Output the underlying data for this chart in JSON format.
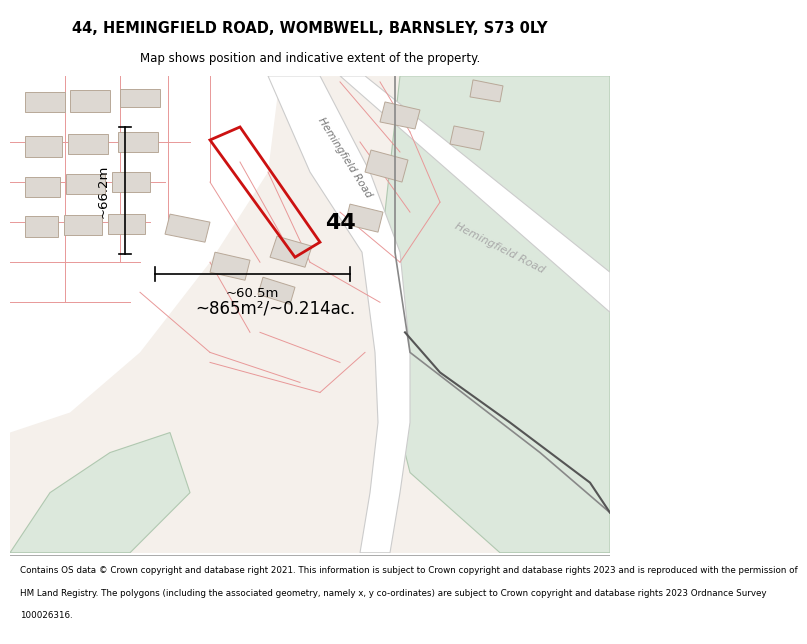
{
  "title_line1": "44, HEMINGFIELD ROAD, WOMBWELL, BARNSLEY, S73 0LY",
  "title_line2": "Map shows position and indicative extent of the property.",
  "footer_lines": [
    "Contains OS data © Crown copyright and database right 2021. This information is subject to Crown copyright and database rights 2023 and is reproduced with the permission of",
    "HM Land Registry. The polygons (including the associated geometry, namely x, y co-ordinates) are subject to Crown copyright and database rights 2023 Ordnance Survey",
    "100026316."
  ],
  "map_bg": "#f5f0eb",
  "white": "#ffffff",
  "green_fill": "#dce8dc",
  "green_stroke": "#b0c8b0",
  "building_fill": "#ddd8d2",
  "building_stroke": "#b8a898",
  "boundary_color": "#e89898",
  "dark_line": "#444444",
  "red_color": "#cc1111",
  "dim_color": "#222222",
  "area_label": "~865m²/~0.214ac.",
  "dim_width": "~60.5m",
  "dim_height": "~66.2m",
  "road_label_upper": "Hemingfield Road",
  "road_label_lower": "Hemingfield Road",
  "num_label": "44"
}
